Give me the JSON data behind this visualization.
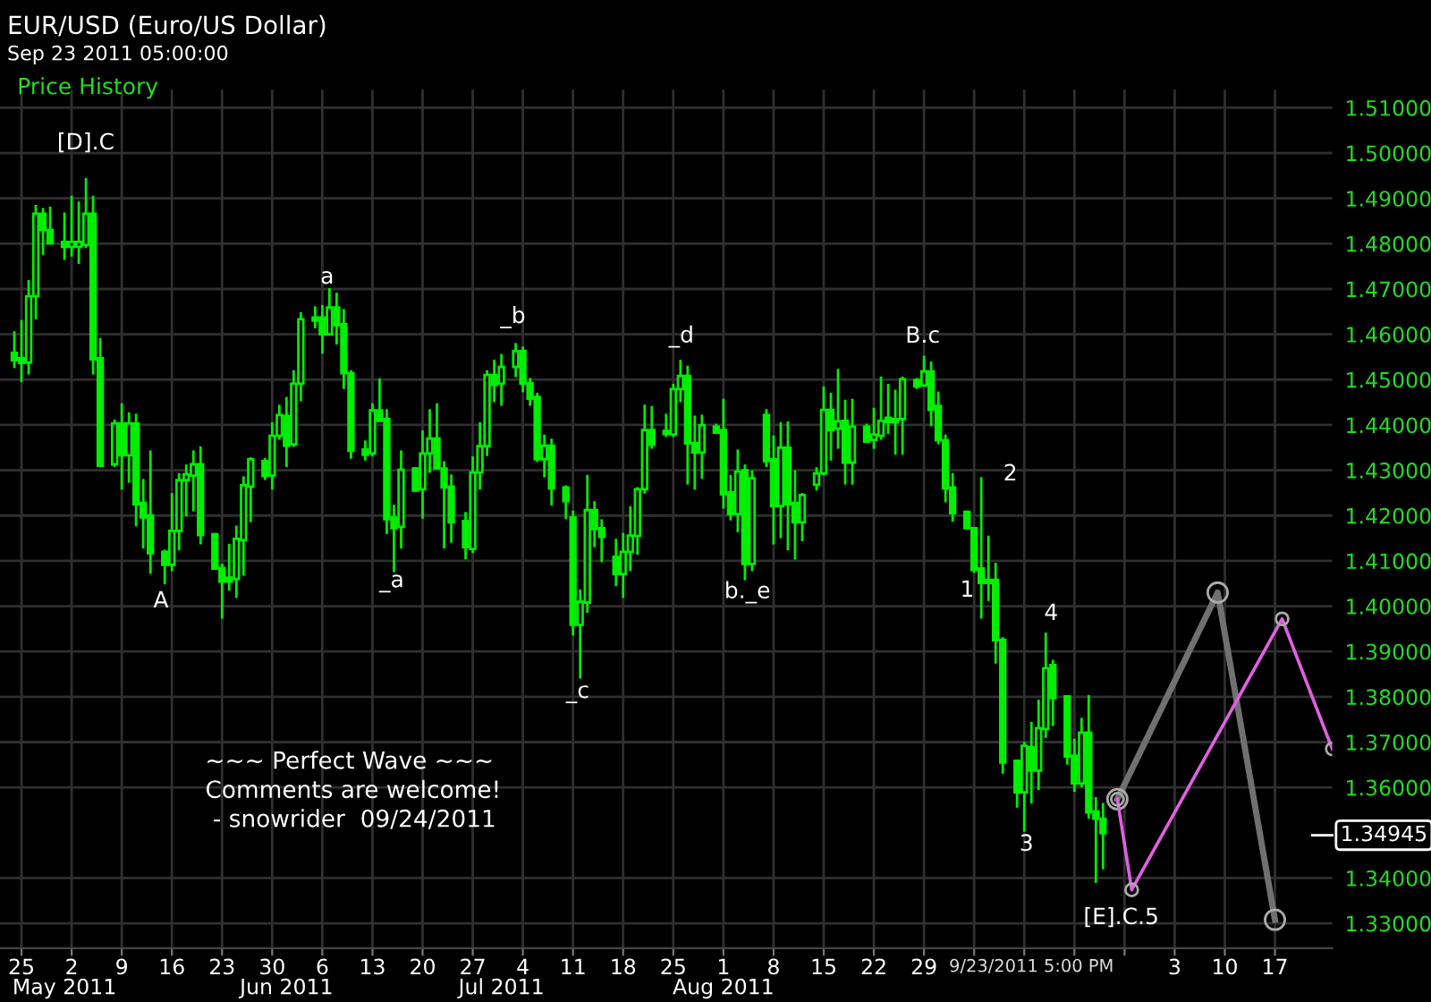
{
  "chart_data": {
    "type": "candlestick",
    "title": "EUR/USD (Euro/US Dollar)",
    "subtitle": "Sep 23 2011 05:00:00",
    "color": "#00ee00",
    "grid": true,
    "marker": "circle",
    "xlim": [
      "2011-04-22",
      "2011-10-25"
    ],
    "xticks": [
      {
        "value": "2011-04-25",
        "label": "25"
      },
      {
        "value": "2011-05-02",
        "label": "2"
      },
      {
        "value": "2011-05-09",
        "label": "9"
      },
      {
        "value": "2011-05-16",
        "label": "16"
      },
      {
        "value": "2011-05-23",
        "label": "23"
      },
      {
        "value": "2011-05-30",
        "label": "30"
      },
      {
        "value": "2011-06-06",
        "label": "6"
      },
      {
        "value": "2011-06-13",
        "label": "13"
      },
      {
        "value": "2011-06-20",
        "label": "20"
      },
      {
        "value": "2011-06-27",
        "label": "27"
      },
      {
        "value": "2011-07-04",
        "label": "4"
      },
      {
        "value": "2011-07-11",
        "label": "11"
      },
      {
        "value": "2011-07-18",
        "label": "18"
      },
      {
        "value": "2011-07-25",
        "label": "25"
      },
      {
        "value": "2011-08-01",
        "label": "1"
      },
      {
        "value": "2011-08-08",
        "label": "8"
      },
      {
        "value": "2011-08-15",
        "label": "15"
      },
      {
        "value": "2011-08-22",
        "label": "22"
      },
      {
        "value": "2011-08-29",
        "label": "29"
      },
      {
        "value": "2011-09-05",
        "label": null
      },
      {
        "value": "2011-09-12",
        "label": null
      },
      {
        "value": "2011-09-19",
        "label": null
      },
      {
        "value": "2011-09-26",
        "label": null
      },
      {
        "value": "2011-10-03",
        "label": "3"
      },
      {
        "value": "2011-10-10",
        "label": "10"
      },
      {
        "value": "2011-10-17",
        "label": "17"
      }
    ],
    "x2lim": [
      "2011-04-22",
      "2011-10-25"
    ],
    "x2ticks": [
      {
        "value": "2011-05-01",
        "label": "May 2011"
      },
      {
        "value": "2011-06-01",
        "label": "Jun 2011"
      },
      {
        "value": "2011-07-01",
        "label": "Jul 2011"
      },
      {
        "value": "2011-08-01",
        "label": "Aug 2011"
      }
    ],
    "ylim": [
      1.3245,
      1.514
    ],
    "yticks": [
      {
        "value": 1.33,
        "label": "1.33000"
      },
      {
        "value": 1.34,
        "label": "1.34000"
      },
      {
        "value": 1.36,
        "label": "1.36000"
      },
      {
        "value": 1.37,
        "label": "1.37000"
      },
      {
        "value": 1.38,
        "label": "1.38000"
      },
      {
        "value": 1.39,
        "label": "1.39000"
      },
      {
        "value": 1.4,
        "label": "1.40000"
      },
      {
        "value": 1.41,
        "label": "1.41000"
      },
      {
        "value": 1.42,
        "label": "1.42000"
      },
      {
        "value": 1.43,
        "label": "1.43000"
      },
      {
        "value": 1.44,
        "label": "1.44000"
      },
      {
        "value": 1.45,
        "label": "1.45000"
      },
      {
        "value": 1.46,
        "label": "1.46000"
      },
      {
        "value": 1.47,
        "label": "1.47000"
      },
      {
        "value": 1.48,
        "label": "1.48000"
      },
      {
        "value": 1.49,
        "label": "1.49000"
      },
      {
        "value": 1.5,
        "label": "1.50000"
      },
      {
        "value": 1.51,
        "label": "1.51000"
      }
    ],
    "ref_lines": [
      {
        "axis": "y",
        "value": 1.34945,
        "label": "1.34945"
      }
    ],
    "x": [
      "2011-04-24",
      "2011-04-25",
      "2011-04-26",
      "2011-04-27",
      "2011-04-28",
      "2011-04-29",
      "2011-05-01",
      "2011-05-02",
      "2011-05-03",
      "2011-05-04",
      "2011-05-05",
      "2011-05-06",
      "2011-05-08",
      "2011-05-09",
      "2011-05-10",
      "2011-05-11",
      "2011-05-12",
      "2011-05-13",
      "2011-05-15",
      "2011-05-16",
      "2011-05-17",
      "2011-05-18",
      "2011-05-19",
      "2011-05-20",
      "2011-05-22",
      "2011-05-23",
      "2011-05-24",
      "2011-05-25",
      "2011-05-26",
      "2011-05-27",
      "2011-05-29",
      "2011-05-30",
      "2011-05-31",
      "2011-06-01",
      "2011-06-02",
      "2011-06-03",
      "2011-06-05",
      "2011-06-06",
      "2011-06-07",
      "2011-06-08",
      "2011-06-09",
      "2011-06-10",
      "2011-06-12",
      "2011-06-13",
      "2011-06-14",
      "2011-06-15",
      "2011-06-16",
      "2011-06-17",
      "2011-06-19",
      "2011-06-20",
      "2011-06-21",
      "2011-06-22",
      "2011-06-23",
      "2011-06-24",
      "2011-06-26",
      "2011-06-27",
      "2011-06-28",
      "2011-06-29",
      "2011-06-30",
      "2011-07-01",
      "2011-07-03",
      "2011-07-04",
      "2011-07-05",
      "2011-07-06",
      "2011-07-07",
      "2011-07-08",
      "2011-07-10",
      "2011-07-11",
      "2011-07-12",
      "2011-07-13",
      "2011-07-14",
      "2011-07-15",
      "2011-07-17",
      "2011-07-18",
      "2011-07-19",
      "2011-07-20",
      "2011-07-21",
      "2011-07-22",
      "2011-07-24",
      "2011-07-25",
      "2011-07-26",
      "2011-07-27",
      "2011-07-28",
      "2011-07-29",
      "2011-07-31",
      "2011-08-01",
      "2011-08-02",
      "2011-08-03",
      "2011-08-04",
      "2011-08-05",
      "2011-08-07",
      "2011-08-08",
      "2011-08-09",
      "2011-08-10",
      "2011-08-11",
      "2011-08-12",
      "2011-08-14",
      "2011-08-15",
      "2011-08-16",
      "2011-08-17",
      "2011-08-18",
      "2011-08-19",
      "2011-08-21",
      "2011-08-22",
      "2011-08-23",
      "2011-08-24",
      "2011-08-25",
      "2011-08-26",
      "2011-08-28",
      "2011-08-29",
      "2011-08-30",
      "2011-08-31",
      "2011-09-01",
      "2011-09-02",
      "2011-09-04",
      "2011-09-05",
      "2011-09-06",
      "2011-09-07",
      "2011-09-08",
      "2011-09-09",
      "2011-09-11",
      "2011-09-12",
      "2011-09-13",
      "2011-09-14",
      "2011-09-15",
      "2011-09-16",
      "2011-09-18",
      "2011-09-19",
      "2011-09-20",
      "2011-09-21",
      "2011-09-22",
      "2011-09-23"
    ],
    "ohlc": [
      [
        1.4559,
        1.4604,
        1.4528,
        1.4543
      ],
      [
        1.4547,
        1.4629,
        1.4497,
        1.4537
      ],
      [
        1.4538,
        1.4717,
        1.4514,
        1.4684
      ],
      [
        1.4684,
        1.4883,
        1.4636,
        1.4866
      ],
      [
        1.4866,
        1.4876,
        1.4778,
        1.483
      ],
      [
        1.483,
        1.4879,
        1.4801,
        1.4801
      ],
      [
        1.4804,
        1.4866,
        1.4767,
        1.4793
      ],
      [
        1.4793,
        1.4903,
        1.4774,
        1.4804
      ],
      [
        1.4793,
        1.489,
        1.4758,
        1.4804
      ],
      [
        1.4797,
        1.4942,
        1.4793,
        1.4866
      ],
      [
        1.4866,
        1.4903,
        1.4514,
        1.4545
      ],
      [
        1.4547,
        1.4589,
        1.431,
        1.431
      ],
      [
        1.4313,
        1.4409,
        1.431,
        1.4403
      ],
      [
        1.4403,
        1.4445,
        1.426,
        1.4333
      ],
      [
        1.4333,
        1.4425,
        1.4275,
        1.4403
      ],
      [
        1.4403,
        1.4422,
        1.4179,
        1.4225
      ],
      [
        1.4228,
        1.4278,
        1.413,
        1.4196
      ],
      [
        1.42,
        1.4341,
        1.4074,
        1.4117
      ],
      [
        1.412,
        1.4122,
        1.4051,
        1.4091
      ],
      [
        1.4091,
        1.4247,
        1.408,
        1.4166
      ],
      [
        1.4166,
        1.4291,
        1.4126,
        1.4278
      ],
      [
        1.4278,
        1.431,
        1.4201,
        1.4291
      ],
      [
        1.4288,
        1.4341,
        1.4212,
        1.4313
      ],
      [
        1.4313,
        1.435,
        1.4139,
        1.4157
      ],
      [
        1.4159,
        1.4159,
        1.4083,
        1.4083
      ],
      [
        1.4084,
        1.4091,
        1.3975,
        1.4054
      ],
      [
        1.4063,
        1.4135,
        1.4037,
        1.4054
      ],
      [
        1.406,
        1.4175,
        1.4021,
        1.4149
      ],
      [
        1.4146,
        1.4284,
        1.407,
        1.4267
      ],
      [
        1.4264,
        1.4326,
        1.4188,
        1.4324
      ],
      [
        1.432,
        1.4324,
        1.4281,
        1.4287
      ],
      [
        1.4288,
        1.4403,
        1.426,
        1.4376
      ],
      [
        1.4376,
        1.4442,
        1.437,
        1.4422
      ],
      [
        1.442,
        1.4459,
        1.431,
        1.4354
      ],
      [
        1.4357,
        1.4518,
        1.4354,
        1.4491
      ],
      [
        1.4491,
        1.4646,
        1.4455,
        1.4633
      ],
      [
        1.4637,
        1.4659,
        1.4616,
        1.463
      ],
      [
        1.4637,
        1.4662,
        1.456,
        1.46
      ],
      [
        1.46,
        1.4699,
        1.46,
        1.4659
      ],
      [
        1.4659,
        1.4689,
        1.458,
        1.462
      ],
      [
        1.4622,
        1.4653,
        1.4482,
        1.4514
      ],
      [
        1.4514,
        1.4518,
        1.4328,
        1.4343
      ],
      [
        1.4346,
        1.4363,
        1.4324,
        1.4334
      ],
      [
        1.4337,
        1.4445,
        1.4333,
        1.4432
      ],
      [
        1.4432,
        1.45,
        1.4409,
        1.4409
      ],
      [
        1.4413,
        1.4432,
        1.4162,
        1.4192
      ],
      [
        1.4196,
        1.4221,
        1.4078,
        1.4172
      ],
      [
        1.4175,
        1.4341,
        1.413,
        1.4301
      ],
      [
        1.4304,
        1.4304,
        1.4255,
        1.4255
      ],
      [
        1.4258,
        1.4385,
        1.4196,
        1.4337
      ],
      [
        1.4337,
        1.4432,
        1.4297,
        1.437
      ],
      [
        1.437,
        1.4445,
        1.4304,
        1.4304
      ],
      [
        1.4304,
        1.4317,
        1.413,
        1.4262
      ],
      [
        1.4264,
        1.4288,
        1.4143,
        1.4185
      ],
      [
        1.4188,
        1.4205,
        1.4106,
        1.413
      ],
      [
        1.4126,
        1.4328,
        1.412,
        1.4295
      ],
      [
        1.4295,
        1.4403,
        1.426,
        1.4353
      ],
      [
        1.4353,
        1.4518,
        1.4334,
        1.451
      ],
      [
        1.451,
        1.4541,
        1.4453,
        1.4488
      ],
      [
        1.4491,
        1.4554,
        1.4445,
        1.4528
      ],
      [
        1.4528,
        1.4578,
        1.4508,
        1.4563
      ],
      [
        1.4563,
        1.457,
        1.4475,
        1.4491
      ],
      [
        1.4492,
        1.4501,
        1.4445,
        1.4458
      ],
      [
        1.4462,
        1.4468,
        1.4321,
        1.4324
      ],
      [
        1.4324,
        1.4376,
        1.4287,
        1.4354
      ],
      [
        1.4354,
        1.4367,
        1.4225,
        1.426
      ],
      [
        1.4262,
        1.4264,
        1.4195,
        1.4232
      ],
      [
        1.4196,
        1.4208,
        1.3938,
        1.3959
      ],
      [
        1.3959,
        1.4034,
        1.3843,
        1.401
      ],
      [
        1.4008,
        1.4287,
        1.3988,
        1.4212
      ],
      [
        1.4212,
        1.4229,
        1.4133,
        1.417
      ],
      [
        1.4172,
        1.4189,
        1.41,
        1.4153
      ],
      [
        1.4109,
        1.4146,
        1.4047,
        1.4071
      ],
      [
        1.4071,
        1.4159,
        1.4021,
        1.412
      ],
      [
        1.412,
        1.4218,
        1.408,
        1.4156
      ],
      [
        1.4155,
        1.426,
        1.4116,
        1.4258
      ],
      [
        1.4258,
        1.4442,
        1.4251,
        1.4389
      ],
      [
        1.4389,
        1.4439,
        1.435,
        1.4356
      ],
      [
        1.4387,
        1.4422,
        1.4376,
        1.438
      ],
      [
        1.4379,
        1.4488,
        1.4376,
        1.4479
      ],
      [
        1.4479,
        1.4541,
        1.4453,
        1.4508
      ],
      [
        1.4508,
        1.4528,
        1.4271,
        1.4359
      ],
      [
        1.436,
        1.4418,
        1.426,
        1.4339
      ],
      [
        1.4339,
        1.442,
        1.4284,
        1.4399
      ],
      [
        1.4396,
        1.44,
        1.4383,
        1.4383
      ],
      [
        1.4389,
        1.4455,
        1.4218,
        1.4247
      ],
      [
        1.4251,
        1.4287,
        1.4192,
        1.4203
      ],
      [
        1.4203,
        1.4343,
        1.4166,
        1.4297
      ],
      [
        1.43,
        1.431,
        1.406,
        1.4093
      ],
      [
        1.4093,
        1.4297,
        1.408,
        1.4282
      ],
      [
        1.4422,
        1.4432,
        1.431,
        1.432
      ],
      [
        1.4324,
        1.4374,
        1.4139,
        1.4221
      ],
      [
        1.4221,
        1.4403,
        1.4153,
        1.435
      ],
      [
        1.435,
        1.4405,
        1.4126,
        1.4225
      ],
      [
        1.4228,
        1.4297,
        1.4106,
        1.4185
      ],
      [
        1.4185,
        1.4247,
        1.4146,
        1.4245
      ],
      [
        1.4268,
        1.4304,
        1.4258,
        1.4293
      ],
      [
        1.4293,
        1.4482,
        1.4291,
        1.4433
      ],
      [
        1.4433,
        1.4468,
        1.4324,
        1.4389
      ],
      [
        1.4392,
        1.4521,
        1.435,
        1.4408
      ],
      [
        1.4409,
        1.4453,
        1.4271,
        1.4317
      ],
      [
        1.4317,
        1.4455,
        1.4271,
        1.4396
      ],
      [
        1.4396,
        1.44,
        1.4363,
        1.4363
      ],
      [
        1.4367,
        1.4435,
        1.435,
        1.4379
      ],
      [
        1.4376,
        1.4504,
        1.437,
        1.4409
      ],
      [
        1.4416,
        1.4488,
        1.4383,
        1.4406
      ],
      [
        1.4413,
        1.4475,
        1.4337,
        1.4406
      ],
      [
        1.4413,
        1.4504,
        1.4337,
        1.4501
      ],
      [
        1.4499,
        1.4501,
        1.4482,
        1.4485
      ],
      [
        1.4487,
        1.455,
        1.4487,
        1.4518
      ],
      [
        1.4518,
        1.4537,
        1.44,
        1.4433
      ],
      [
        1.4442,
        1.4471,
        1.436,
        1.4366
      ],
      [
        1.4366,
        1.4376,
        1.4232,
        1.426
      ],
      [
        1.4262,
        1.4291,
        1.4189,
        1.4205
      ],
      [
        1.4208,
        1.4208,
        1.4172,
        1.4172
      ],
      [
        1.4172,
        1.4172,
        1.4076,
        1.408
      ],
      [
        1.4083,
        1.4282,
        1.3975,
        1.4051
      ],
      [
        1.4058,
        1.4153,
        1.4014,
        1.4051
      ],
      [
        1.4058,
        1.4093,
        1.3876,
        1.3925
      ],
      [
        1.3926,
        1.3929,
        1.3633,
        1.3655
      ],
      [
        1.3659,
        1.3659,
        1.3558,
        1.3589
      ],
      [
        1.3589,
        1.3698,
        1.3505,
        1.3692
      ],
      [
        1.3689,
        1.3742,
        1.3567,
        1.3637
      ],
      [
        1.3637,
        1.3791,
        1.3597,
        1.3731
      ],
      [
        1.3729,
        1.3939,
        1.3712,
        1.3863
      ],
      [
        1.387,
        1.3879,
        1.3738,
        1.3797
      ],
      [
        1.3801,
        1.3801,
        1.3653,
        1.3668
      ],
      [
        1.367,
        1.3705,
        1.3593,
        1.3609
      ],
      [
        1.3609,
        1.3751,
        1.3603,
        1.3721
      ],
      [
        1.3721,
        1.3801,
        1.3534,
        1.3545
      ],
      [
        1.3547,
        1.3576,
        1.3392,
        1.3531
      ],
      [
        1.3531,
        1.3563,
        1.3422,
        1.3499
      ]
    ],
    "series": [
      {
        "type": "line",
        "color": "#707070",
        "x": [
          "2011-09-25",
          "2011-10-09",
          "2011-10-17"
        ],
        "values": [
          1.3574,
          1.403,
          1.3308
        ]
      },
      {
        "type": "line",
        "color": "#e060e0",
        "x": [
          "2011-09-25",
          "2011-09-27",
          "2011-10-18",
          "2011-10-25"
        ],
        "values": [
          1.3574,
          1.3374,
          1.3972,
          1.3685
        ]
      }
    ],
    "annotations": [
      "Price History",
      "~~~ Perfect Wave ~~~\nComments are welcome!\n - snowrider  09/24/2011",
      "[D].C",
      "A",
      "a",
      "_a",
      "_b",
      "_c",
      "_d",
      "b._e",
      "B.c",
      "1",
      "2",
      "3",
      "4",
      "[E].C.5",
      "9/23/2011 5:00 PM"
    ]
  }
}
